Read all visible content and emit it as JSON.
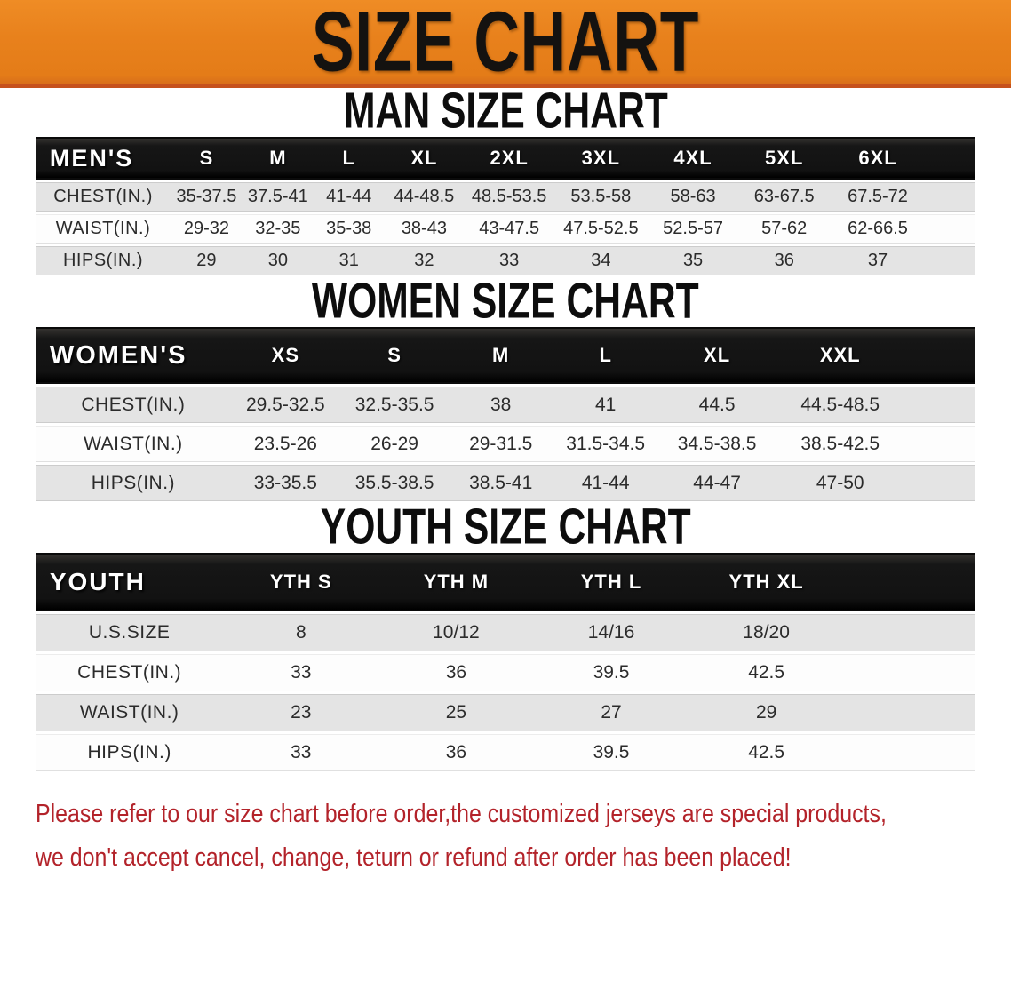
{
  "banner": {
    "title": "SIZE CHART"
  },
  "sections": [
    {
      "id": "men",
      "heading": "MAN SIZE CHART",
      "table": {
        "header_label": "MEN'S",
        "columns": [
          "S",
          "M",
          "L",
          "XL",
          "2XL",
          "3XL",
          "4XL",
          "5XL",
          "6XL"
        ],
        "rows": [
          {
            "label": "CHEST(IN.)",
            "values": [
              "35-37.5",
              "37.5-41",
              "41-44",
              "44-48.5",
              "48.5-53.5",
              "53.5-58",
              "58-63",
              "63-67.5",
              "67.5-72"
            ]
          },
          {
            "label": "WAIST(IN.)",
            "values": [
              "29-32",
              "32-35",
              "35-38",
              "38-43",
              "43-47.5",
              "47.5-52.5",
              "52.5-57",
              "57-62",
              "62-66.5"
            ]
          },
          {
            "label": "HIPS(IN.)",
            "values": [
              "29",
              "30",
              "31",
              "32",
              "33",
              "34",
              "35",
              "36",
              "37"
            ]
          }
        ]
      }
    },
    {
      "id": "women",
      "heading": "WOMEN SIZE CHART",
      "table": {
        "header_label": "WOMEN'S",
        "columns": [
          "XS",
          "S",
          "M",
          "L",
          "XL",
          "XXL"
        ],
        "rows": [
          {
            "label": "CHEST(IN.)",
            "values": [
              "29.5-32.5",
              "32.5-35.5",
              "38",
              "41",
              "44.5",
              "44.5-48.5"
            ]
          },
          {
            "label": "WAIST(IN.)",
            "values": [
              "23.5-26",
              "26-29",
              "29-31.5",
              "31.5-34.5",
              "34.5-38.5",
              "38.5-42.5"
            ]
          },
          {
            "label": "HIPS(IN.)",
            "values": [
              "33-35.5",
              "35.5-38.5",
              "38.5-41",
              "41-44",
              "44-47",
              "47-50"
            ]
          }
        ]
      }
    },
    {
      "id": "youth",
      "heading": "YOUTH SIZE CHART",
      "table": {
        "header_label": "YOUTH",
        "columns": [
          "YTH S",
          "YTH M",
          "YTH L",
          "YTH XL"
        ],
        "rows": [
          {
            "label": "U.S.SIZE",
            "values": [
              "8",
              "10/12",
              "14/16",
              "18/20"
            ]
          },
          {
            "label": "CHEST(IN.)",
            "values": [
              "33",
              "36",
              "39.5",
              "42.5"
            ]
          },
          {
            "label": "WAIST(IN.)",
            "values": [
              "23",
              "25",
              "27",
              "29"
            ]
          },
          {
            "label": "HIPS(IN.)",
            "values": [
              "33",
              "36",
              "39.5",
              "42.5"
            ]
          }
        ]
      }
    }
  ],
  "footer": {
    "line1": "Please refer to our size chart before order,the customized jerseys are special products,",
    "line2": "we don't accept cancel, change, teturn or refund after order has been placed!"
  },
  "colors": {
    "banner_orange": "#E8811C",
    "banner_edge": "#C6511D",
    "header_black": "#141414",
    "stripe_gray": "#E4E4E4",
    "footer_red": "#B3232A"
  }
}
